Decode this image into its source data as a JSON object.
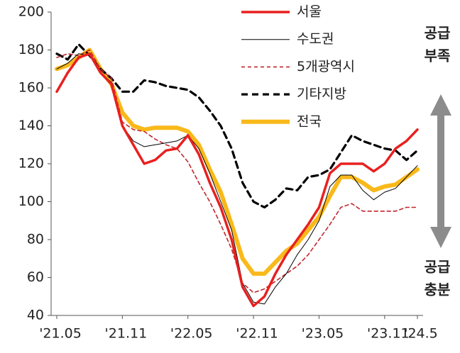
{
  "chart_data": {
    "type": "line",
    "categories": [
      "'21.05",
      null,
      null,
      null,
      null,
      null,
      "'21.11",
      null,
      null,
      null,
      null,
      null,
      "'22.05",
      null,
      null,
      null,
      null,
      null,
      "'22.11",
      null,
      null,
      null,
      null,
      null,
      "'23.05",
      null,
      null,
      null,
      null,
      null,
      "'23.11",
      null,
      null,
      "'24.5"
    ],
    "series": [
      {
        "name": "서울",
        "color": "#e8201f",
        "style": "solid",
        "values": [
          158,
          168,
          176,
          178,
          168,
          162,
          140,
          130,
          120,
          122,
          127,
          128,
          135,
          125,
          110,
          97,
          80,
          55,
          45,
          50,
          62,
          72,
          80,
          88,
          97,
          115,
          120,
          120,
          120,
          116,
          120,
          128,
          132,
          138
        ]
      },
      {
        "name": "수도권",
        "color": "#000000",
        "style": "solid",
        "values": [
          170,
          173,
          178,
          177,
          168,
          163,
          140,
          132,
          129,
          130,
          131,
          132,
          135,
          128,
          115,
          100,
          85,
          57,
          47,
          46,
          55,
          62,
          72,
          80,
          90,
          108,
          114,
          114,
          106,
          101,
          105,
          107,
          113,
          119
        ]
      },
      {
        "name": "5개광역시",
        "color": "#c0272d",
        "style": "dashed",
        "values": [
          176,
          178,
          177,
          180,
          170,
          165,
          142,
          138,
          137,
          133,
          130,
          128,
          121,
          110,
          100,
          88,
          75,
          57,
          52,
          54,
          58,
          62,
          66,
          72,
          80,
          88,
          97,
          99,
          95,
          95,
          95,
          95,
          97,
          97
        ]
      },
      {
        "name": "기타지방",
        "color": "#000000",
        "style": "dashed",
        "values": [
          178,
          175,
          183,
          177,
          170,
          165,
          158,
          158,
          164,
          163,
          161,
          160,
          159,
          155,
          148,
          140,
          128,
          110,
          100,
          97,
          101,
          107,
          106,
          113,
          114,
          117,
          126,
          135,
          132,
          130,
          128,
          127,
          122,
          127
        ]
      },
      {
        "name": "전국",
        "color": "#f9b91a",
        "style": "solid",
        "values": [
          170,
          172,
          176,
          180,
          170,
          162,
          147,
          140,
          138,
          139,
          139,
          139,
          137,
          130,
          117,
          105,
          88,
          70,
          62,
          62,
          68,
          74,
          78,
          85,
          92,
          103,
          113,
          113,
          110,
          106,
          108,
          109,
          113,
          117
        ]
      }
    ],
    "ylim": [
      40,
      200
    ],
    "yticks": [
      40,
      60,
      80,
      100,
      120,
      140,
      160,
      180,
      200
    ],
    "annotations": {
      "top": [
        "공급",
        "부족"
      ],
      "bottom": [
        "공급",
        "충분"
      ]
    }
  }
}
